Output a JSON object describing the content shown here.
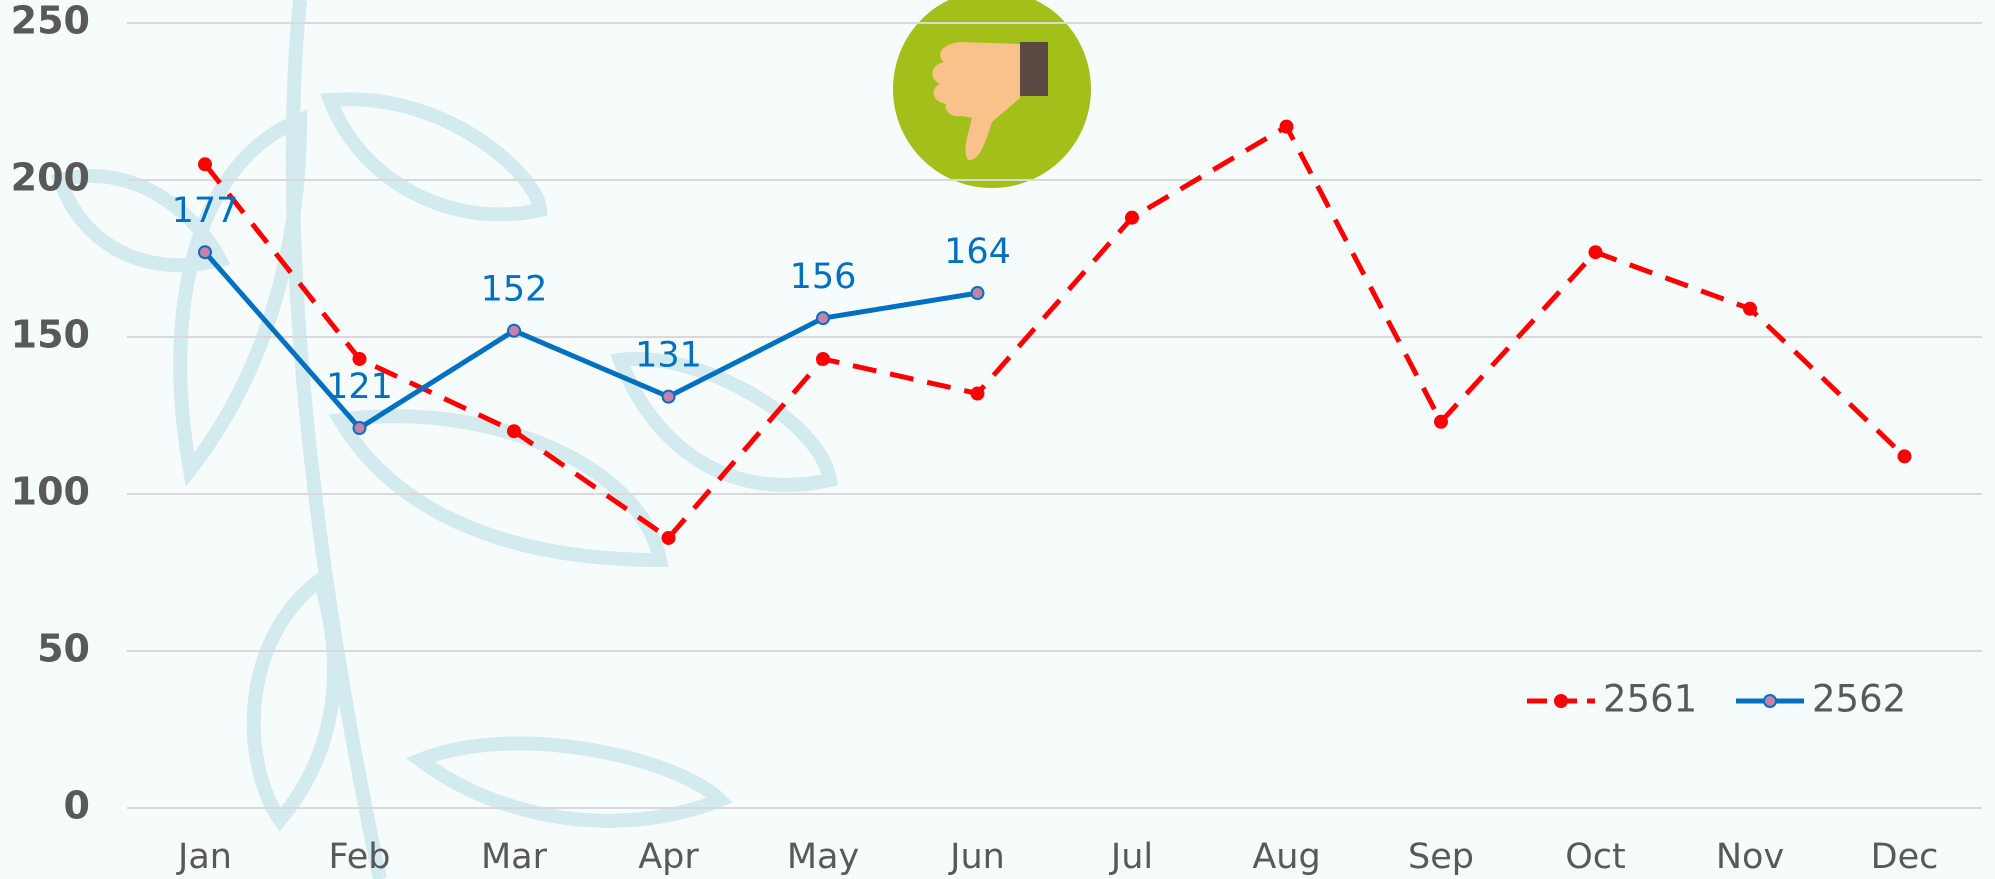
{
  "chart_data": {
    "type": "line",
    "categories": [
      "Jan",
      "Feb",
      "Mar",
      "Apr",
      "May",
      "Jun",
      "Jul",
      "Aug",
      "Sep",
      "Oct",
      "Nov",
      "Dec"
    ],
    "series": [
      {
        "name": "2561",
        "color": "#ff0000",
        "dashed": true,
        "values": [
          205,
          143,
          120,
          86,
          143,
          132,
          188,
          217,
          123,
          177,
          159,
          112
        ]
      },
      {
        "name": "2562",
        "color": "#0070c0",
        "dashed": false,
        "data_labels": true,
        "values": [
          177,
          121,
          152,
          131,
          156,
          164,
          null,
          null,
          null,
          null,
          null,
          null
        ]
      }
    ],
    "ylim": [
      0,
      250
    ],
    "yticks": [
      0,
      50,
      100,
      150,
      200,
      250
    ],
    "grid": true,
    "legend": "lower right"
  }
}
